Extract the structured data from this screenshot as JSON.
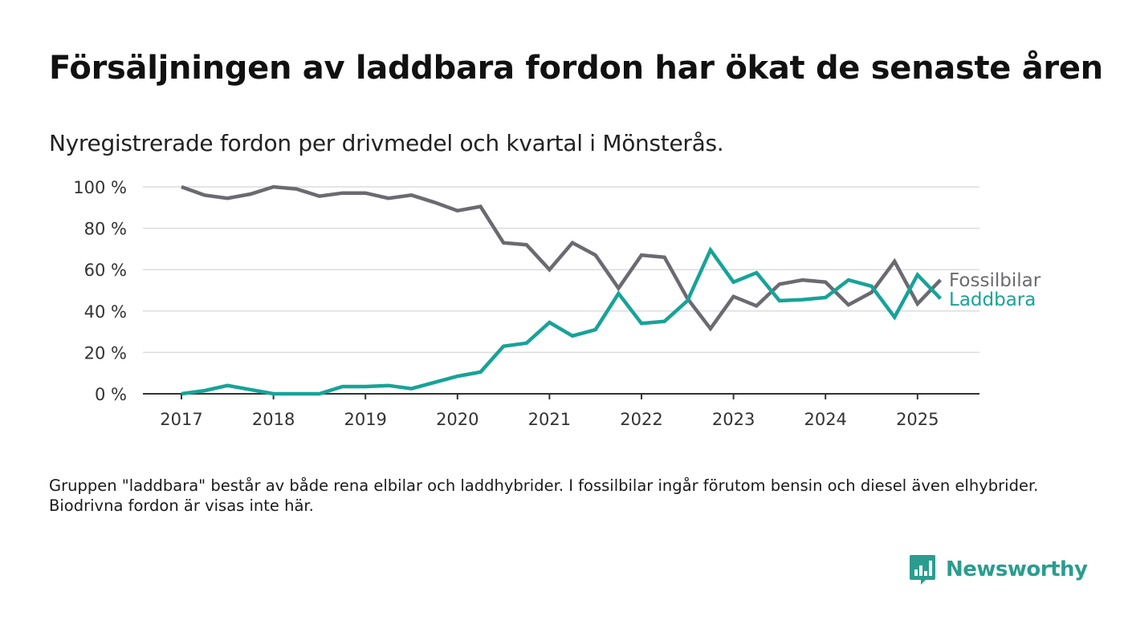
{
  "title": "Försäljningen av laddbara fordon har ökat de senaste åren",
  "subtitle": "Nyregistrerade fordon per drivmedel och kvartal i Mönsterås.",
  "note": "Gruppen \"laddbara\" består av både rena elbilar och laddhybrider. I fossilbilar ingår förutom bensin och diesel även elhybrider. Biodrivna fordon är visas inte här.",
  "brand": {
    "name": "Newsworthy",
    "color": "#2a9d8f"
  },
  "chart_data": {
    "type": "line",
    "title": "Försäljningen av laddbara fordon har ökat de senaste åren",
    "subtitle": "Nyregistrerade fordon per drivmedel och kvartal i Mönsterås.",
    "x": [
      "2017-Q1",
      "2017-Q2",
      "2017-Q3",
      "2017-Q4",
      "2018-Q1",
      "2018-Q2",
      "2018-Q3",
      "2018-Q4",
      "2019-Q1",
      "2019-Q2",
      "2019-Q3",
      "2019-Q4",
      "2020-Q1",
      "2020-Q2",
      "2020-Q3",
      "2020-Q4",
      "2021-Q1",
      "2021-Q2",
      "2021-Q3",
      "2021-Q4",
      "2022-Q1",
      "2022-Q2",
      "2022-Q3",
      "2022-Q4",
      "2023-Q1",
      "2023-Q2",
      "2023-Q3",
      "2023-Q4",
      "2024-Q1",
      "2024-Q2",
      "2024-Q3",
      "2024-Q4",
      "2025-Q1",
      "2025-Q2"
    ],
    "x_tick_labels": [
      "2017",
      "2018",
      "2019",
      "2020",
      "2021",
      "2022",
      "2023",
      "2024",
      "2025"
    ],
    "y_tick_labels": [
      "0 %",
      "20 %",
      "40 %",
      "60 %",
      "80 %",
      "100 %"
    ],
    "ylim": [
      0,
      100
    ],
    "grid": true,
    "series": [
      {
        "name": "Fossilbilar",
        "color": "#6b6a70",
        "values": [
          100,
          96,
          94.5,
          96.5,
          100,
          99,
          95.5,
          97,
          97,
          94.5,
          96,
          92.5,
          88.5,
          90.5,
          73,
          72,
          60,
          73,
          67,
          51,
          67,
          66,
          46,
          31.5,
          47,
          42.5,
          53,
          55,
          54,
          43,
          49,
          64,
          43.5,
          55
        ]
      },
      {
        "name": "Laddbara",
        "color": "#17a398",
        "values": [
          0,
          1.5,
          4,
          2,
          0,
          0,
          0,
          3.5,
          3.5,
          4,
          2.5,
          5.5,
          8.5,
          10.5,
          23,
          24.5,
          34.5,
          28,
          31,
          48.5,
          34,
          35,
          45,
          69.5,
          54,
          58.5,
          45,
          45.5,
          46.5,
          55,
          52,
          37,
          57.5,
          46
        ]
      }
    ]
  }
}
